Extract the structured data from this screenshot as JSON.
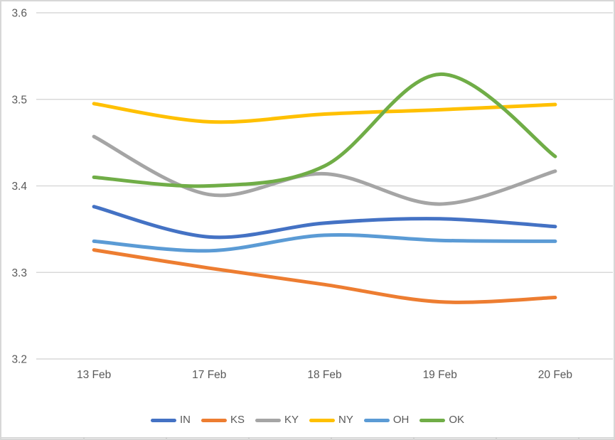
{
  "window": {
    "background": "#ffffff",
    "border_color": "#d7d7d7"
  },
  "chart_data": {
    "type": "line",
    "smooth": true,
    "title": "",
    "xlabel": "",
    "ylabel": "",
    "grid": true,
    "legend_position": "bottom",
    "x": [
      "13 Feb",
      "17 Feb",
      "18 Feb",
      "19 Feb",
      "20 Feb"
    ],
    "series": [
      {
        "name": "IN",
        "color": "#4472C4",
        "values": [
          3.376,
          3.341,
          3.357,
          3.362,
          3.353
        ]
      },
      {
        "name": "KS",
        "color": "#ED7D31",
        "values": [
          3.326,
          3.305,
          3.286,
          3.266,
          3.271
        ]
      },
      {
        "name": "KY",
        "color": "#A5A5A5",
        "values": [
          3.457,
          3.39,
          3.414,
          3.379,
          3.417
        ]
      },
      {
        "name": "NY",
        "color": "#FFC000",
        "values": [
          3.495,
          3.474,
          3.483,
          3.488,
          3.494
        ]
      },
      {
        "name": "OH",
        "color": "#5B9BD5",
        "values": [
          3.336,
          3.325,
          3.343,
          3.337,
          3.336
        ]
      },
      {
        "name": "OK",
        "color": "#70AD47",
        "values": [
          3.41,
          3.4,
          3.423,
          3.529,
          3.434
        ]
      }
    ],
    "yticks": [
      "3.2",
      "3.3",
      "3.4",
      "3.5",
      "3.6"
    ],
    "ylim": [
      3.2,
      3.6
    ],
    "axis_text_color": "#595959",
    "gridline_color": "#d9d9d9"
  }
}
